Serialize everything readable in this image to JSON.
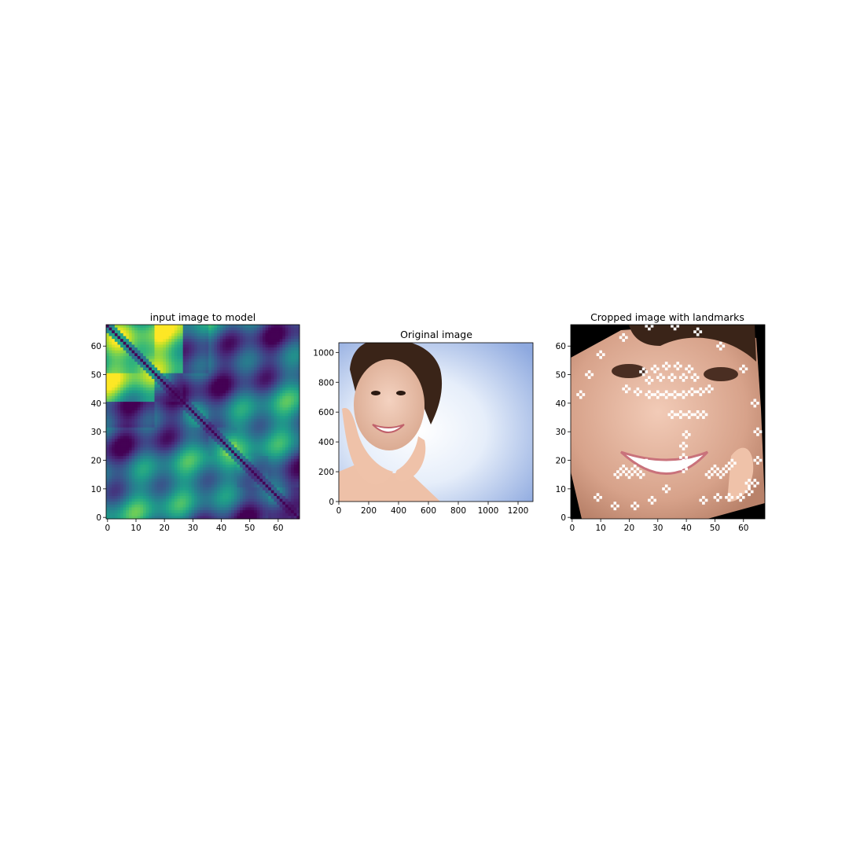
{
  "chart_data": [
    {
      "type": "heatmap",
      "title": "input image to model",
      "xticks": [
        0,
        10,
        20,
        30,
        40,
        50,
        60
      ],
      "yticks": [
        0,
        10,
        20,
        30,
        40,
        50,
        60
      ],
      "xlim": [
        -0.5,
        67.5
      ],
      "ylim": [
        67.5,
        -0.5
      ],
      "size": [
        68,
        68
      ],
      "colormap": "viridis",
      "grid": false,
      "blocks": [
        0,
        17,
        27,
        36,
        46,
        57,
        68
      ],
      "description_of_structure": "symmetric self-similarity matrix, dark diagonal"
    },
    {
      "type": "image",
      "title": "Original image",
      "xticks": [
        0,
        200,
        400,
        600,
        800,
        1000,
        1200
      ],
      "yticks": [
        0,
        200,
        400,
        600,
        800,
        1000
      ],
      "xlim": [
        0,
        1300
      ],
      "ylim": [
        1065,
        0
      ],
      "grid": false
    },
    {
      "type": "image",
      "title": "Cropped image with landmarks",
      "xticks": [
        0,
        10,
        20,
        30,
        40,
        50,
        60
      ],
      "yticks": [
        0,
        10,
        20,
        30,
        40,
        50,
        60
      ],
      "xlim": [
        -0.5,
        67.5
      ],
      "ylim": [
        67.5,
        -0.5
      ],
      "grid": false,
      "landmarks": [
        [
          9,
          7
        ],
        [
          15,
          4
        ],
        [
          22,
          4
        ],
        [
          28,
          6
        ],
        [
          33,
          10
        ],
        [
          46,
          6
        ],
        [
          51,
          7
        ],
        [
          55,
          7
        ],
        [
          59,
          7
        ],
        [
          62,
          9
        ],
        [
          64,
          12
        ],
        [
          16,
          15
        ],
        [
          18,
          17
        ],
        [
          20,
          15
        ],
        [
          22,
          17
        ],
        [
          24,
          15
        ],
        [
          26,
          19
        ],
        [
          48,
          15
        ],
        [
          50,
          17
        ],
        [
          52,
          15
        ],
        [
          54,
          17
        ],
        [
          56,
          19
        ],
        [
          39,
          17
        ],
        [
          39,
          21
        ],
        [
          39,
          25
        ],
        [
          40,
          29
        ],
        [
          35,
          36
        ],
        [
          38,
          36
        ],
        [
          41,
          36
        ],
        [
          44,
          36
        ],
        [
          46,
          36
        ],
        [
          19,
          45
        ],
        [
          23,
          44
        ],
        [
          27,
          43
        ],
        [
          30,
          43
        ],
        [
          33,
          43
        ],
        [
          36,
          43
        ],
        [
          39,
          43
        ],
        [
          42,
          44
        ],
        [
          45,
          44
        ],
        [
          48,
          45
        ],
        [
          27,
          48
        ],
        [
          31,
          49
        ],
        [
          35,
          49
        ],
        [
          39,
          49
        ],
        [
          43,
          49
        ],
        [
          25,
          51
        ],
        [
          29,
          52
        ],
        [
          33,
          53
        ],
        [
          37,
          53
        ],
        [
          41,
          52
        ],
        [
          6,
          50
        ],
        [
          3,
          43
        ],
        [
          10,
          57
        ],
        [
          18,
          63
        ],
        [
          27,
          67
        ],
        [
          36,
          67
        ],
        [
          44,
          65
        ],
        [
          52,
          60
        ],
        [
          60,
          52
        ],
        [
          64,
          40
        ],
        [
          65,
          30
        ],
        [
          65,
          20
        ],
        [
          62,
          12
        ]
      ]
    }
  ]
}
